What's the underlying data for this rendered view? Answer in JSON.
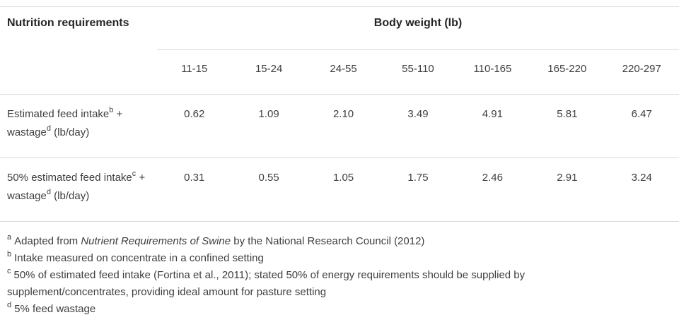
{
  "table": {
    "corner_header": "Nutrition requirements",
    "group_header": "Body weight (lb)",
    "weight_ranges": [
      "11-15",
      "15-24",
      "24-55",
      "55-110",
      "110-165",
      "165-220",
      "220-297"
    ],
    "rows": [
      {
        "label": [
          {
            "t": "Estimated feed intake"
          },
          {
            "t": "b",
            "sup": true
          },
          {
            "t": " + wastage"
          },
          {
            "t": "d",
            "sup": true
          },
          {
            "t": " (lb/day)"
          }
        ],
        "values": [
          "0.62",
          "1.09",
          "2.10",
          "3.49",
          "4.91",
          "5.81",
          "6.47"
        ]
      },
      {
        "label": [
          {
            "t": "50% estimated feed intake"
          },
          {
            "t": "c",
            "sup": true
          },
          {
            "t": " + wastage"
          },
          {
            "t": "d",
            "sup": true
          },
          {
            "t": " (lb/day)"
          }
        ],
        "values": [
          "0.31",
          "0.55",
          "1.05",
          "1.75",
          "2.46",
          "2.91",
          "3.24"
        ]
      }
    ]
  },
  "footnotes": [
    {
      "marker": "a",
      "parts": [
        {
          "t": "Adapted from "
        },
        {
          "t": "Nutrient Requirements of Swine",
          "italic": true
        },
        {
          "t": " by the National Research Council (2012)"
        }
      ]
    },
    {
      "marker": "b",
      "parts": [
        {
          "t": "Intake measured on concentrate in a confined setting"
        }
      ]
    },
    {
      "marker": "c",
      "parts": [
        {
          "t": "50% of estimated feed intake (Fortina et al., 2011); stated 50% of energy requirements should be supplied by supplement/concentrates, providing ideal amount for pasture setting"
        }
      ]
    },
    {
      "marker": "d",
      "parts": [
        {
          "t": "5% feed wastage"
        }
      ]
    }
  ],
  "colors": {
    "background": "#ffffff",
    "border": "#dadada",
    "text": "#3e3e3e",
    "heading_text": "#252525"
  }
}
